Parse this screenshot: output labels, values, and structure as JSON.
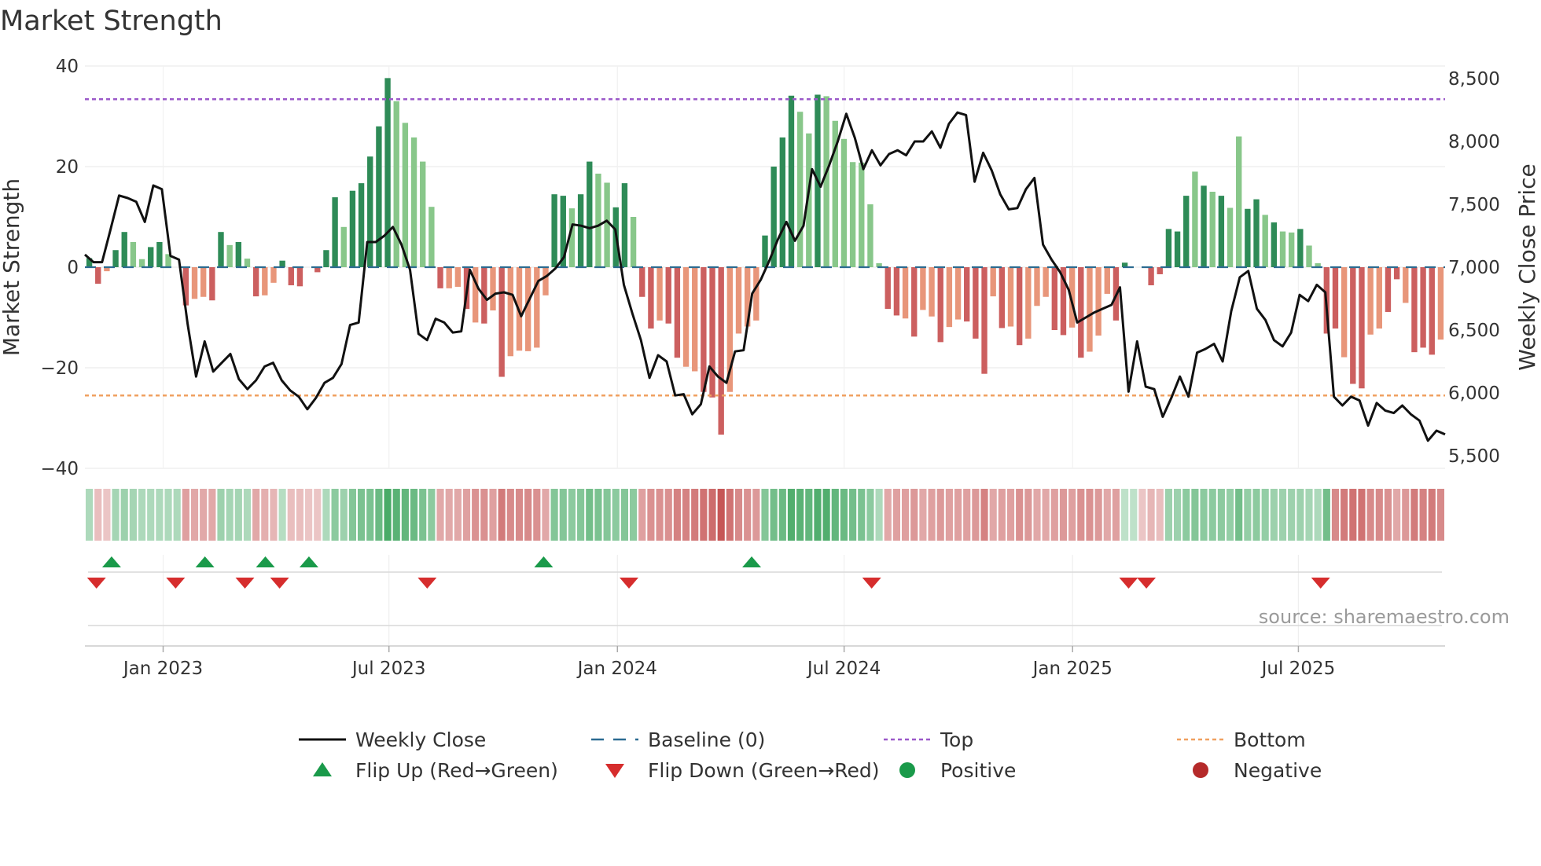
{
  "chart_data": {
    "type": "bar",
    "title": "Market Strength",
    "ylabel_left": "Market Strength",
    "ylabel_right": "Weekly Close Price",
    "ylim_left": [
      -40,
      40
    ],
    "ylim_right": [
      5400,
      8600
    ],
    "yticks_left": [
      40,
      20,
      0,
      -20,
      -40
    ],
    "yticks_left_labels": [
      "40",
      "20",
      "0",
      "−20",
      "−40"
    ],
    "yticks_right": [
      8500,
      8000,
      7500,
      7000,
      6500,
      6000,
      5500
    ],
    "yticks_right_labels": [
      "8,500",
      "8,000",
      "7,500",
      "7,000",
      "6,500",
      "6,000",
      "5,500"
    ],
    "x_range": [
      0,
      153
    ],
    "x_ticks": [
      {
        "label": "Jan 2023",
        "x": 8.8
      },
      {
        "label": "Jul 2023",
        "x": 34.2
      },
      {
        "label": "Jan 2024",
        "x": 59.9
      },
      {
        "label": "Jul 2024",
        "x": 85.4
      },
      {
        "label": "Jan 2025",
        "x": 111.1
      },
      {
        "label": "Jul 2025",
        "x": 136.5
      }
    ],
    "top_level": 33.4,
    "bottom_level": -25.5,
    "baseline": 0,
    "strength_values": [
      1.8,
      -3.3,
      -0.8,
      3.4,
      7,
      5,
      1.6,
      4,
      5,
      2.6,
      0,
      -7.6,
      -6.3,
      -5.9,
      -6.6,
      7,
      4.4,
      5,
      1.7,
      -5.8,
      -5.6,
      -3.1,
      1.3,
      -3.6,
      -3.8,
      0,
      -1,
      3.4,
      13.9,
      8,
      15.2,
      16.7,
      22,
      28,
      37.6,
      33,
      28.7,
      25.8,
      21,
      12,
      -4.2,
      -4.2,
      -3.9,
      -8.3,
      -11,
      -11.2,
      -8.6,
      -21.8,
      -17.7,
      -16.6,
      -16.7,
      -16,
      -5.6,
      14.5,
      14.2,
      11.7,
      14.5,
      21,
      18.6,
      16.8,
      11.9,
      16.7,
      10,
      -5.9,
      -12.2,
      -10.6,
      -11.2,
      -18,
      -19.8,
      -20.7,
      -24.8,
      -25.9,
      -33.3,
      -24.8,
      -13.2,
      -11.8,
      -10.6,
      6.3,
      20,
      25.8,
      34.1,
      30.9,
      26.6,
      34.3,
      34,
      29.1,
      25.5,
      20.9,
      20.8,
      12.5,
      0.8,
      -8.3,
      -9.6,
      -10.2,
      -13.8,
      -8.5,
      -9.8,
      -14.9,
      -11.9,
      -10.4,
      -10.8,
      -14.2,
      -21.2,
      -5.8,
      -12.1,
      -11.8,
      -15.5,
      -14.2,
      -7.7,
      -5.9,
      -12.5,
      -13.5,
      -12,
      -18,
      -16.8,
      -13.6,
      -5.3,
      -10.6,
      0.9,
      0,
      0,
      -3.6,
      -1.4,
      7.6,
      7.1,
      14.2,
      19,
      16.2,
      15,
      14.2,
      11.8,
      26,
      11.6,
      13.5,
      10.4,
      8.9,
      7.1,
      6.9,
      7.6,
      4.3,
      0.8,
      -13.2,
      -12.2,
      -17.9,
      -23.2,
      -24.1,
      -13.4,
      -12.2,
      -8.9,
      -2.4,
      -7.1,
      -16.9,
      -16,
      -17.4,
      -14.4
    ],
    "strength_shade": [
      0,
      0,
      1,
      0,
      0,
      1,
      1,
      0,
      0,
      1,
      0,
      0,
      1,
      1,
      0,
      0,
      1,
      0,
      1,
      0,
      1,
      1,
      0,
      0,
      0,
      1,
      0,
      0,
      0,
      1,
      0,
      0,
      0,
      0,
      0,
      1,
      1,
      1,
      1,
      1,
      0,
      1,
      1,
      0,
      1,
      0,
      1,
      0,
      1,
      1,
      1,
      1,
      1,
      0,
      0,
      1,
      0,
      0,
      1,
      1,
      0,
      0,
      1,
      0,
      0,
      1,
      0,
      0,
      1,
      1,
      0,
      0,
      0,
      1,
      1,
      1,
      1,
      0,
      0,
      0,
      0,
      1,
      1,
      0,
      1,
      1,
      1,
      1,
      1,
      1,
      1,
      0,
      0,
      1,
      0,
      1,
      1,
      0,
      1,
      1,
      0,
      0,
      0,
      1,
      0,
      1,
      0,
      1,
      1,
      1,
      0,
      0,
      1,
      0,
      1,
      1,
      1,
      0,
      0,
      1,
      0,
      0,
      0,
      0,
      0,
      0,
      1,
      0,
      1,
      0,
      1,
      1,
      0,
      0,
      1,
      0,
      1,
      1,
      0,
      1,
      1,
      0,
      0,
      1,
      0,
      0,
      1,
      1,
      0,
      0,
      1,
      0,
      0,
      0,
      1
    ],
    "weekly_close": [
      7100,
      7040,
      7040,
      7300,
      7570,
      7550,
      7520,
      7360,
      7650,
      7620,
      7090,
      7060,
      6550,
      6130,
      6410,
      6170,
      6240,
      6310,
      6110,
      6030,
      6100,
      6210,
      6240,
      6100,
      6020,
      5970,
      5870,
      5960,
      6080,
      6120,
      6230,
      6540,
      6560,
      7200,
      7200,
      7250,
      7320,
      7180,
      6980,
      6470,
      6420,
      6590,
      6560,
      6480,
      6490,
      6980,
      6830,
      6740,
      6790,
      6800,
      6780,
      6610,
      6750,
      6890,
      6930,
      6990,
      7080,
      7340,
      7330,
      7310,
      7330,
      7370,
      7300,
      6860,
      6630,
      6420,
      6120,
      6300,
      6250,
      5980,
      5990,
      5830,
      5910,
      6210,
      6130,
      6080,
      6330,
      6340,
      6790,
      6900,
      7050,
      7220,
      7360,
      7210,
      7330,
      7780,
      7640,
      7810,
      8000,
      8220,
      8030,
      7780,
      7930,
      7810,
      7900,
      7930,
      7890,
      8000,
      8000,
      8080,
      7950,
      8140,
      8230,
      8210,
      7680,
      7910,
      7770,
      7580,
      7460,
      7470,
      7620,
      7710,
      7180,
      7060,
      6960,
      6820,
      6560,
      6600,
      6640,
      6670,
      6700,
      6840,
      6010,
      6410,
      6050,
      6030,
      5810,
      5960,
      6130,
      5970,
      6320,
      6350,
      6390,
      6250,
      6650,
      6920,
      6970,
      6670,
      6580,
      6420,
      6370,
      6480,
      6780,
      6730,
      6860,
      6800,
      5970,
      5900,
      5970,
      5940,
      5740,
      5920,
      5860,
      5840,
      5900,
      5830,
      5780,
      5620,
      5700,
      5670
    ],
    "heat_strip": [
      0.3,
      0.25,
      0.2,
      0.35,
      0.4,
      0.35,
      0.3,
      0.3,
      0.3,
      0.3,
      0.3,
      0.45,
      0.4,
      0.4,
      0.4,
      0.4,
      0.35,
      0.35,
      0.3,
      0.4,
      0.35,
      0.3,
      0.25,
      0.25,
      0.25,
      0.2,
      0.2,
      0.3,
      0.5,
      0.4,
      0.55,
      0.6,
      0.6,
      0.7,
      0.9,
      0.8,
      0.75,
      0.7,
      0.6,
      0.5,
      0.4,
      0.4,
      0.4,
      0.45,
      0.55,
      0.55,
      0.45,
      0.7,
      0.6,
      0.6,
      0.6,
      0.55,
      0.4,
      0.55,
      0.55,
      0.5,
      0.55,
      0.65,
      0.6,
      0.55,
      0.5,
      0.55,
      0.5,
      0.45,
      0.55,
      0.55,
      0.55,
      0.65,
      0.65,
      0.7,
      0.75,
      0.8,
      0.95,
      0.75,
      0.6,
      0.55,
      0.5,
      0.55,
      0.65,
      0.7,
      0.85,
      0.8,
      0.75,
      0.85,
      0.85,
      0.75,
      0.7,
      0.65,
      0.6,
      0.5,
      0.3,
      0.4,
      0.45,
      0.45,
      0.5,
      0.4,
      0.45,
      0.5,
      0.45,
      0.45,
      0.45,
      0.5,
      0.65,
      0.4,
      0.45,
      0.45,
      0.55,
      0.5,
      0.4,
      0.4,
      0.45,
      0.5,
      0.45,
      0.55,
      0.55,
      0.5,
      0.4,
      0.45,
      0.2,
      0.2,
      0.2,
      0.3,
      0.25,
      0.4,
      0.4,
      0.5,
      0.55,
      0.5,
      0.5,
      0.5,
      0.45,
      0.65,
      0.45,
      0.5,
      0.45,
      0.4,
      0.4,
      0.4,
      0.4,
      0.35,
      0.3,
      0.65,
      0.6,
      0.7,
      0.75,
      0.75,
      0.6,
      0.6,
      0.55,
      0.4,
      0.5,
      0.7,
      0.65,
      0.7,
      0.6
    ],
    "heat_sign": [
      1,
      -1,
      -1,
      1,
      1,
      1,
      1,
      1,
      1,
      1,
      1,
      -1,
      -1,
      -1,
      -1,
      1,
      1,
      1,
      1,
      -1,
      -1,
      -1,
      1,
      -1,
      -1,
      -1,
      -1,
      1,
      1,
      1,
      1,
      1,
      1,
      1,
      1,
      1,
      1,
      1,
      1,
      1,
      -1,
      -1,
      -1,
      -1,
      -1,
      -1,
      -1,
      -1,
      -1,
      -1,
      -1,
      -1,
      -1,
      1,
      1,
      1,
      1,
      1,
      1,
      1,
      1,
      1,
      1,
      -1,
      -1,
      -1,
      -1,
      -1,
      -1,
      -1,
      -1,
      -1,
      -1,
      -1,
      -1,
      -1,
      -1,
      1,
      1,
      1,
      1,
      1,
      1,
      1,
      1,
      1,
      1,
      1,
      1,
      1,
      1,
      -1,
      -1,
      -1,
      -1,
      -1,
      -1,
      -1,
      -1,
      -1,
      -1,
      -1,
      -1,
      -1,
      -1,
      -1,
      -1,
      -1,
      -1,
      -1,
      -1,
      -1,
      -1,
      -1,
      -1,
      -1,
      -1,
      -1,
      1,
      1,
      -1,
      -1,
      -1,
      1,
      1,
      1,
      1,
      1,
      1,
      1,
      1,
      1,
      1,
      1,
      1,
      1,
      1,
      1,
      1,
      1,
      1,
      1,
      -1,
      -1,
      -1,
      -1,
      -1,
      -1,
      -1,
      -1,
      -1,
      -1,
      -1,
      -1,
      -1,
      -1
    ],
    "flip_up_x": [
      3,
      13.5,
      20.3,
      25.2,
      51.6,
      75
    ],
    "flip_down_x": [
      1.3,
      10.2,
      18,
      21.9,
      38.5,
      61.2,
      88.5,
      117.4,
      119.4,
      139
    ],
    "legend": [
      {
        "label": "Weekly Close",
        "symbol": "line",
        "color": "#111111"
      },
      {
        "label": "Baseline (0)",
        "symbol": "dash",
        "color": "#2c6b91"
      },
      {
        "label": "Top",
        "symbol": "dot",
        "color": "#9b59c9"
      },
      {
        "label": "Bottom",
        "symbol": "dot",
        "color": "#f0a060"
      },
      {
        "label": "Flip Up (Red→Green)",
        "symbol": "tri-up",
        "color": "#1a9a4a"
      },
      {
        "label": "Flip Down (Green→Red)",
        "symbol": "tri-down",
        "color": "#d62d2d"
      },
      {
        "label": "Positive",
        "symbol": "circle",
        "color": "#1a9a4a"
      },
      {
        "label": "Negative",
        "symbol": "circle",
        "color": "#b52a2a"
      }
    ],
    "source": "source: sharemaestro.com"
  },
  "colors": {
    "pos_dark": "#2e8b57",
    "pos_light": "#88c78a",
    "neg_dark": "#cc5f5f",
    "neg_light": "#e8967a",
    "baseline": "#2c6b91",
    "top": "#9b59c9",
    "bottom": "#f0a060",
    "close": "#111111"
  }
}
